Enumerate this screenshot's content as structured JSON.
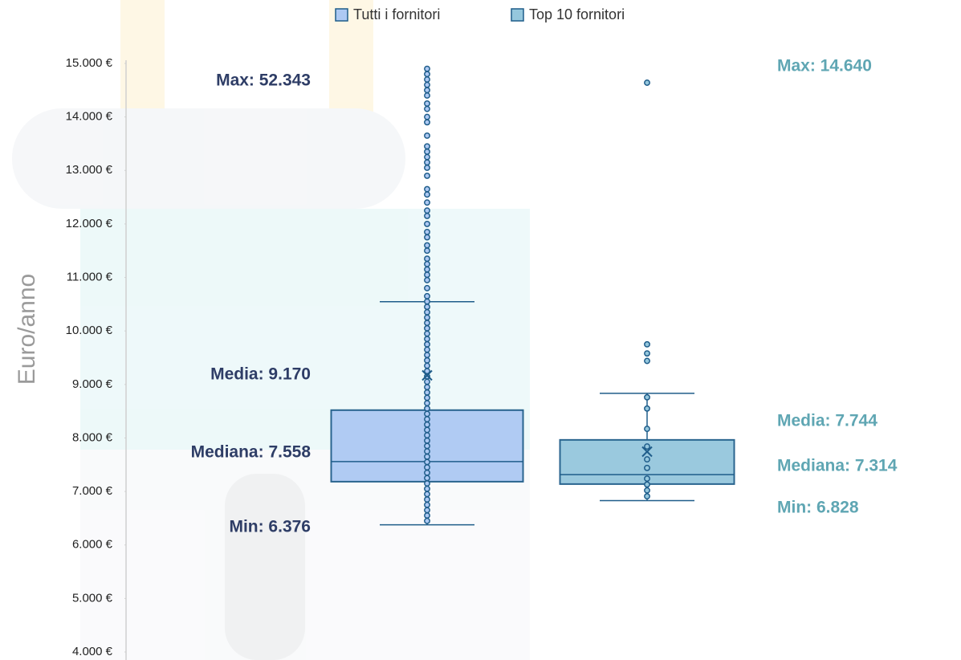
{
  "chart_data": {
    "type": "box",
    "y_label": "Euro/anno",
    "ylim": [
      4000,
      15000
    ],
    "yticks": [
      {
        "value": 4000,
        "label": "4.000 €"
      },
      {
        "value": 5000,
        "label": "5.000 €"
      },
      {
        "value": 6000,
        "label": "6.000 €"
      },
      {
        "value": 7000,
        "label": "7.000 €"
      },
      {
        "value": 8000,
        "label": "8.000 €"
      },
      {
        "value": 9000,
        "label": "9.000 €"
      },
      {
        "value": 10000,
        "label": "10.000 €"
      },
      {
        "value": 11000,
        "label": "11.000 €"
      },
      {
        "value": 12000,
        "label": "12.000 €"
      },
      {
        "value": 13000,
        "label": "13.000 €"
      },
      {
        "value": 14000,
        "label": "14.000 €"
      },
      {
        "value": 15000,
        "label": "15.000 €"
      }
    ],
    "series": [
      {
        "name": "Tutti i fornitori",
        "color": "#adc9f3",
        "stroke": "#1f5d8a",
        "label_color": "#2e3d66",
        "min": 6376,
        "q1": 7183,
        "median": 7558,
        "q3": 8520,
        "whisker_high": 10547,
        "max": 52343,
        "mean": 9170,
        "labels": {
          "max": "Max: 52.343",
          "mean": "Media: 9.170",
          "median": "Mediana: 7.558",
          "min": "Min: 6.376"
        },
        "points": [
          6450,
          6550,
          6650,
          6750,
          6850,
          6950,
          7050,
          7150,
          7250,
          7350,
          7450,
          7550,
          7650,
          7750,
          7850,
          7950,
          8050,
          8150,
          8250,
          8350,
          8450,
          8550,
          8650,
          8750,
          8850,
          8950,
          9050,
          9150,
          9250,
          9350,
          9450,
          9550,
          9650,
          9750,
          9850,
          9950,
          10050,
          10150,
          10250,
          10350,
          10450,
          10550,
          10650,
          10800,
          10950,
          11050,
          11150,
          11250,
          11350,
          11500,
          11600,
          11750,
          11850,
          12000,
          12150,
          12250,
          12400,
          12550,
          12650,
          12900,
          13050,
          13150,
          13250,
          13350,
          13450,
          13650,
          13900,
          14000,
          14150,
          14250,
          14400,
          14500,
          14600,
          14700,
          14800,
          14900
        ]
      },
      {
        "name": "Top 10 fornitori",
        "color": "#95c7dd",
        "stroke": "#1f5d8a",
        "label_color": "#5fa6b3",
        "min": 6828,
        "q1": 7138,
        "median": 7314,
        "q3": 7964,
        "whisker_high": 8835,
        "max": 14640,
        "mean": 7744,
        "labels": {
          "max": "Max: 14.640",
          "mean": "Media: 7.744",
          "median": "Mediana: 7.314",
          "min": "Min: 6.828"
        },
        "points": [
          6910,
          7020,
          7130,
          7240,
          7440,
          7600,
          7840,
          8170,
          8550,
          8760,
          9440,
          9580,
          9750,
          14640
        ]
      }
    ]
  }
}
